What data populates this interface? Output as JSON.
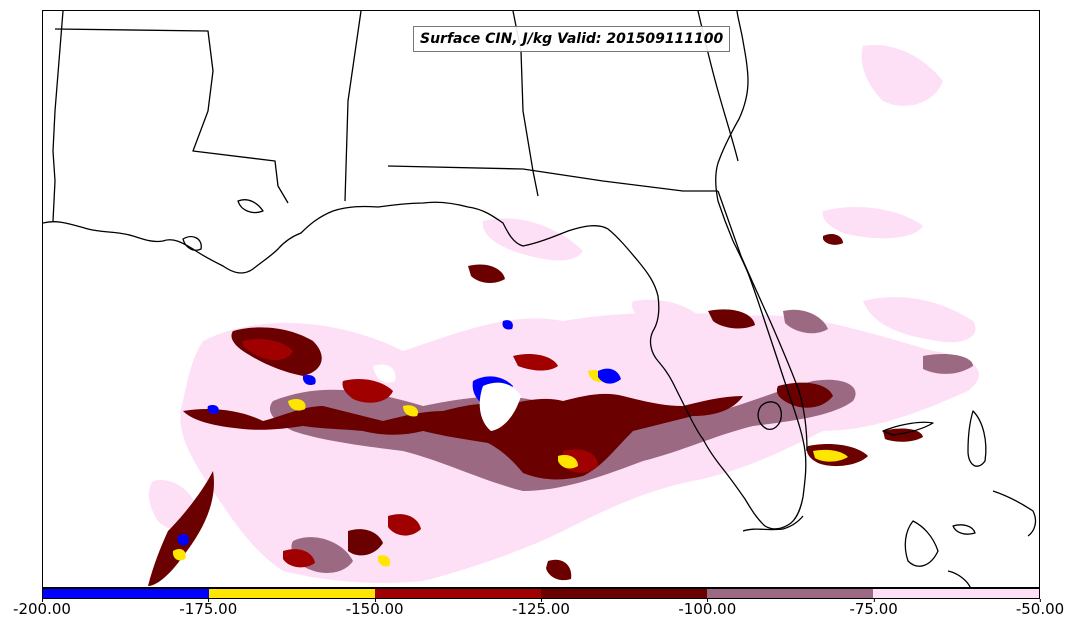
{
  "map": {
    "title": "Surface CIN, J/kg Valid: 201509111100",
    "background_color": "#ffffff",
    "border_color": "#000000"
  },
  "colorbar": {
    "colors": [
      "#0000ff",
      "#ffe600",
      "#a00000",
      "#6a0000",
      "#9b6a82",
      "#fde0f6"
    ],
    "ticks": [
      "-200.00",
      "-175.00",
      "-150.00",
      "-125.00",
      "-100.00",
      "-75.00",
      "-50.00"
    ]
  }
}
